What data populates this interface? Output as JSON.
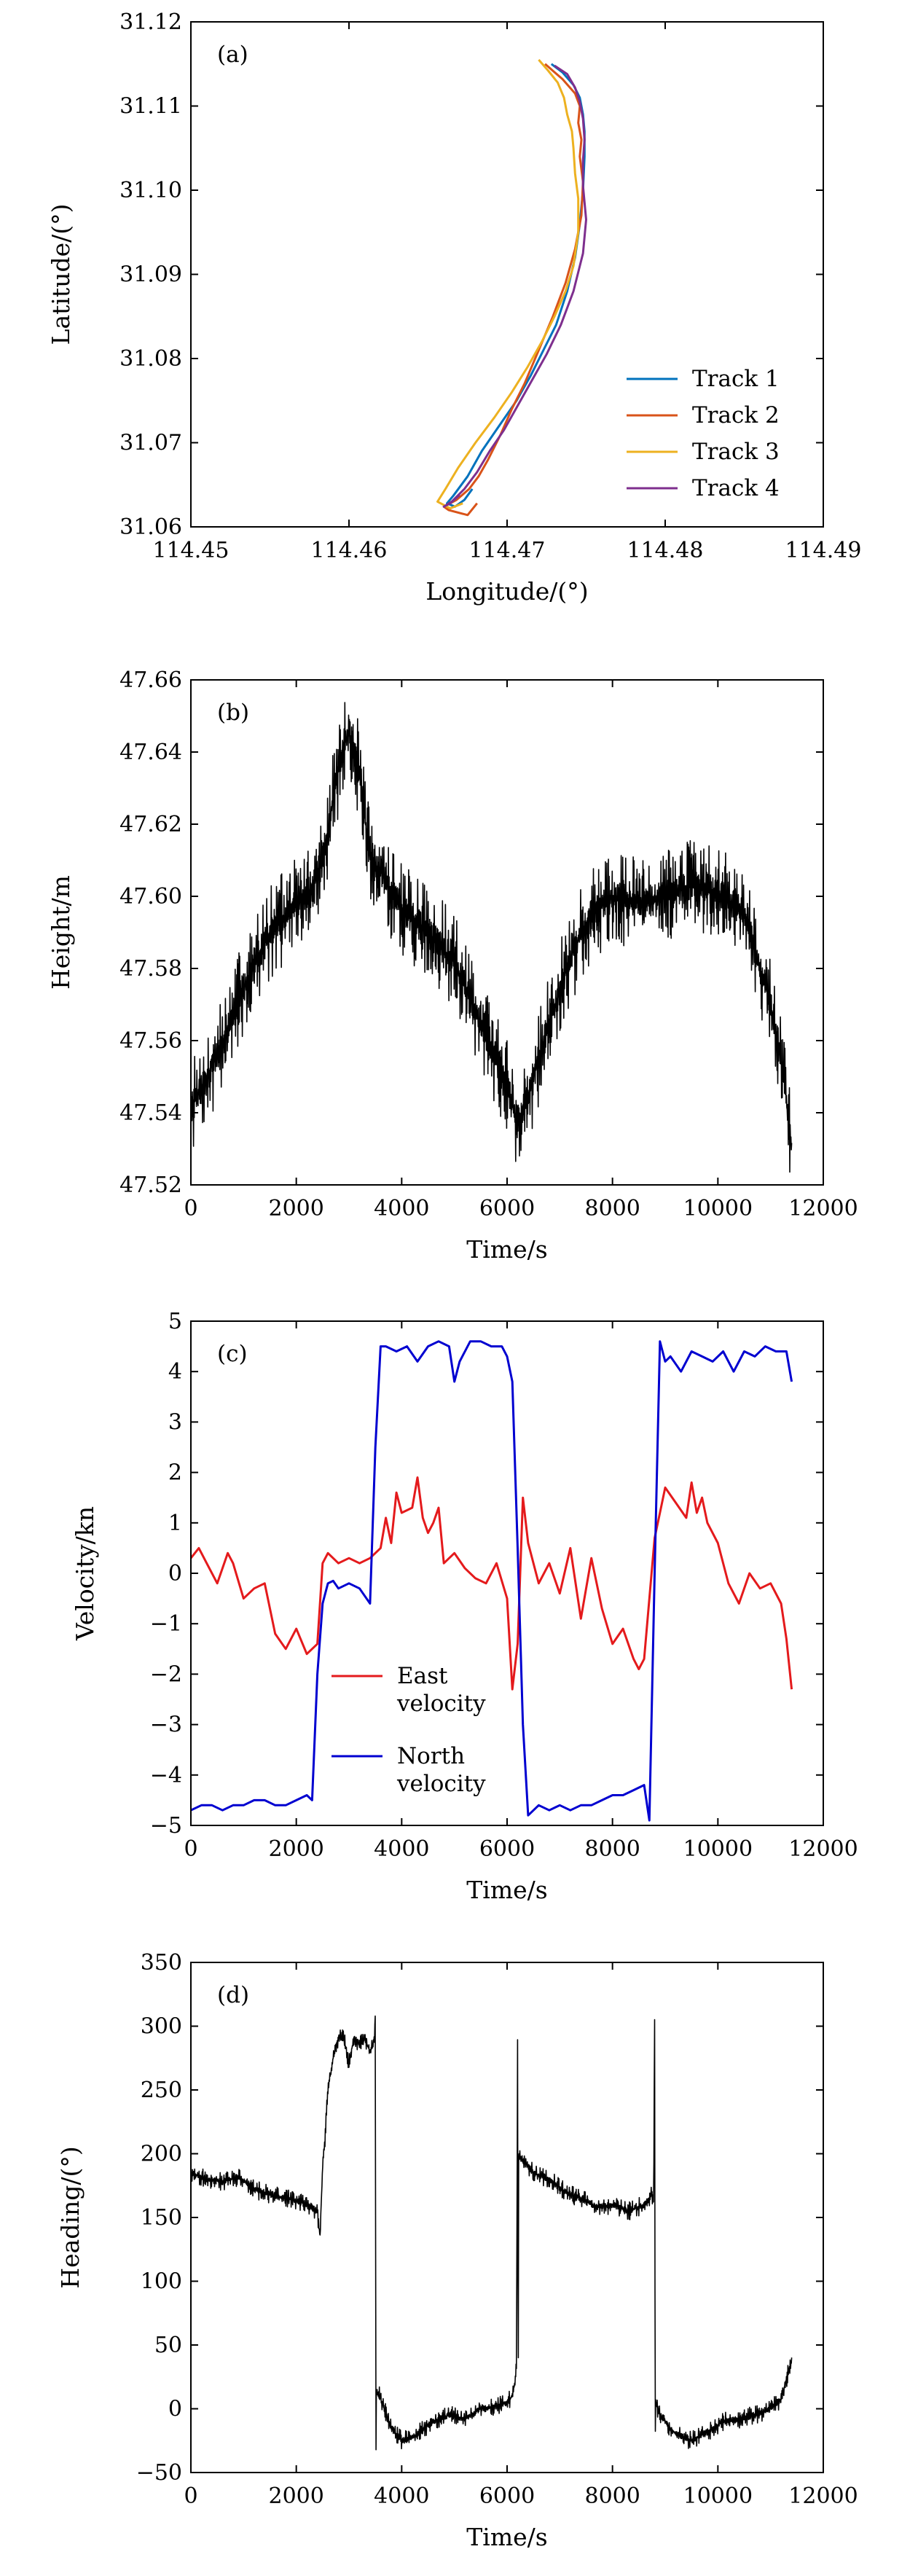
{
  "figure": {
    "panel_count": 4
  },
  "chart_data": [
    {
      "type": "line",
      "panel": "(a)",
      "xlabel": "Longitude/(°)",
      "ylabel": "Latitude/(°)",
      "xlim": [
        114.45,
        114.49
      ],
      "ylim": [
        31.06,
        31.12
      ],
      "xticks": [
        "114.45",
        "114.46",
        "114.47",
        "114.48",
        "114.49"
      ],
      "yticks": [
        "31.06",
        "31.07",
        "31.08",
        "31.09",
        "31.10",
        "31.11",
        "31.12"
      ],
      "xtick_values": [
        114.45,
        114.46,
        114.47,
        114.48,
        114.49
      ],
      "ytick_values": [
        31.06,
        31.07,
        31.08,
        31.09,
        31.1,
        31.11,
        31.12
      ],
      "legend_position": "bottom-right",
      "series": [
        {
          "name": "Track 1",
          "color": "#0072BD",
          "x": [
            114.4728,
            114.4735,
            114.4742,
            114.4746,
            114.4748,
            114.4749,
            114.4749,
            114.4748,
            114.4746,
            114.4743,
            114.4738,
            114.4731,
            114.4723,
            114.4715,
            114.4706,
            114.4695,
            114.4684,
            114.4675,
            114.4666,
            114.4662,
            114.4667,
            114.4673,
            114.4678
          ],
          "y": [
            31.115,
            31.114,
            31.1125,
            31.111,
            31.109,
            31.107,
            31.104,
            31.1,
            31.096,
            31.092,
            31.088,
            31.084,
            31.081,
            31.078,
            31.075,
            31.072,
            31.069,
            31.066,
            31.0637,
            31.0628,
            31.0624,
            31.0632,
            31.0645
          ]
        },
        {
          "name": "Track 2",
          "color": "#D95319",
          "x": [
            114.4724,
            114.4735,
            114.4743,
            114.4746,
            114.4745,
            114.4747,
            114.4746,
            114.4748,
            114.4747,
            114.4743,
            114.4737,
            114.4729,
            114.472,
            114.4711,
            114.4703,
            114.4696,
            114.4688,
            114.4682,
            114.4676,
            114.4668,
            114.466,
            114.4663,
            114.4675,
            114.4681
          ],
          "y": [
            31.115,
            31.1132,
            31.1115,
            31.11,
            31.108,
            31.106,
            31.104,
            31.101,
            31.097,
            31.093,
            31.089,
            31.085,
            31.081,
            31.077,
            31.074,
            31.071,
            31.068,
            31.066,
            31.0645,
            31.0632,
            31.0624,
            31.062,
            31.0614,
            31.0628
          ]
        },
        {
          "name": "Track 3",
          "color": "#EDB120",
          "x": [
            114.472,
            114.4726,
            114.4732,
            114.4736,
            114.4738,
            114.4741,
            114.4742,
            114.4743,
            114.4745,
            114.4745,
            114.4742,
            114.4737,
            114.473,
            114.4722,
            114.4713,
            114.4703,
            114.4692,
            114.468,
            114.4669,
            114.4661,
            114.4656,
            114.4664,
            114.4672
          ],
          "y": [
            31.1155,
            31.1142,
            31.1128,
            31.111,
            31.109,
            31.107,
            31.105,
            31.102,
            31.099,
            31.095,
            31.091,
            31.088,
            31.085,
            31.082,
            31.079,
            31.076,
            31.073,
            31.07,
            31.067,
            31.0645,
            31.063,
            31.0622,
            31.0628
          ]
        },
        {
          "name": "Track 4",
          "color": "#7E2F8E",
          "x": [
            114.473,
            114.4738,
            114.4743,
            114.4746,
            114.4748,
            114.4749,
            114.4748,
            114.4748,
            114.475,
            114.4748,
            114.4742,
            114.4734,
            114.4725,
            114.4716,
            114.4707,
            114.4698,
            114.4689,
            114.4681,
            114.4673,
            114.4665,
            114.466,
            114.4664,
            114.467
          ],
          "y": [
            31.1148,
            31.1138,
            31.1122,
            31.1105,
            31.1085,
            31.106,
            31.1035,
            31.1005,
            31.0965,
            31.0925,
            31.088,
            31.084,
            31.0805,
            31.0775,
            31.0745,
            31.0715,
            31.069,
            31.0665,
            31.0645,
            31.063,
            31.0624,
            31.0628,
            31.0638
          ]
        }
      ]
    },
    {
      "type": "line",
      "panel": "(b)",
      "xlabel": "Time/s",
      "ylabel": "Height/m",
      "xlim": [
        0,
        12000
      ],
      "ylim": [
        47.52,
        47.66
      ],
      "xticks": [
        "0",
        "2000",
        "4000",
        "6000",
        "8000",
        "10000",
        "12000"
      ],
      "yticks": [
        "47.52",
        "47.54",
        "47.56",
        "47.58",
        "47.60",
        "47.62",
        "47.64",
        "47.66"
      ],
      "xtick_values": [
        0,
        2000,
        4000,
        6000,
        8000,
        10000,
        12000
      ],
      "ytick_values": [
        47.52,
        47.54,
        47.56,
        47.58,
        47.6,
        47.62,
        47.64,
        47.66
      ],
      "noise_amplitude": 0.011,
      "series": [
        {
          "name": "",
          "color": "#000000",
          "x": [
            0,
            500,
            1000,
            1500,
            2000,
            2300,
            2600,
            2800,
            3000,
            3200,
            3400,
            3600,
            4000,
            4500,
            5000,
            5500,
            6000,
            6200,
            6400,
            6800,
            7200,
            7600,
            8000,
            8500,
            9000,
            9500,
            10000,
            10500,
            10800,
            11000,
            11200,
            11400
          ],
          "y": [
            47.541,
            47.556,
            47.575,
            47.59,
            47.598,
            47.601,
            47.618,
            47.635,
            47.646,
            47.634,
            47.61,
            47.607,
            47.596,
            47.59,
            47.582,
            47.565,
            47.548,
            47.537,
            47.545,
            47.565,
            47.583,
            47.595,
            47.6,
            47.598,
            47.6,
            47.603,
            47.601,
            47.595,
            47.58,
            47.57,
            47.555,
            47.53
          ]
        }
      ]
    },
    {
      "type": "line",
      "panel": "(c)",
      "xlabel": "Time/s",
      "ylabel": "Velocity/kn",
      "xlim": [
        0,
        12000
      ],
      "ylim": [
        -5,
        5
      ],
      "xticks": [
        "0",
        "2000",
        "4000",
        "6000",
        "8000",
        "10000",
        "12000"
      ],
      "yticks": [
        "−5",
        "−4",
        "−3",
        "−2",
        "−1",
        "0",
        "1",
        "2",
        "3",
        "4",
        "5"
      ],
      "xtick_values": [
        0,
        2000,
        4000,
        6000,
        8000,
        10000,
        12000
      ],
      "ytick_values": [
        -5,
        -4,
        -3,
        -2,
        -1,
        0,
        1,
        2,
        3,
        4,
        5
      ],
      "legend_position": "bottom-left",
      "series": [
        {
          "name": "East\nvelocity",
          "color": "#E41A1C",
          "x": [
            0,
            150,
            300,
            500,
            700,
            800,
            1000,
            1200,
            1400,
            1600,
            1800,
            2000,
            2200,
            2400,
            2500,
            2600,
            2800,
            3000,
            3200,
            3400,
            3600,
            3700,
            3800,
            3900,
            4000,
            4200,
            4300,
            4400,
            4500,
            4600,
            4700,
            4800,
            5000,
            5200,
            5400,
            5600,
            5800,
            6000,
            6100,
            6200,
            6300,
            6400,
            6600,
            6800,
            7000,
            7200,
            7400,
            7600,
            7800,
            8000,
            8200,
            8400,
            8500,
            8600,
            8800,
            8900,
            9000,
            9200,
            9400,
            9500,
            9600,
            9700,
            9800,
            10000,
            10200,
            10400,
            10600,
            10800,
            11000,
            11200,
            11300,
            11400
          ],
          "y": [
            0.3,
            0.5,
            0.2,
            -0.2,
            0.4,
            0.2,
            -0.5,
            -0.3,
            -0.2,
            -1.2,
            -1.5,
            -1.1,
            -1.6,
            -1.4,
            0.2,
            0.4,
            0.2,
            0.3,
            0.2,
            0.3,
            0.5,
            1.1,
            0.6,
            1.6,
            1.2,
            1.3,
            1.9,
            1.1,
            0.8,
            1.0,
            1.3,
            0.2,
            0.4,
            0.1,
            -0.1,
            -0.2,
            0.2,
            -0.5,
            -2.3,
            -1.4,
            1.5,
            0.6,
            -0.2,
            0.2,
            -0.4,
            0.5,
            -0.9,
            0.3,
            -0.7,
            -1.4,
            -1.1,
            -1.7,
            -1.9,
            -1.7,
            0.7,
            1.2,
            1.7,
            1.4,
            1.1,
            1.8,
            1.2,
            1.5,
            1.0,
            0.6,
            -0.2,
            -0.6,
            0.0,
            -0.3,
            -0.2,
            -0.6,
            -1.3,
            -2.3
          ]
        },
        {
          "name": "North\nvelocity",
          "color": "#0000D0",
          "x": [
            0,
            200,
            400,
            600,
            800,
            1000,
            1200,
            1400,
            1600,
            1800,
            2000,
            2200,
            2300,
            2400,
            2500,
            2600,
            2700,
            2800,
            3000,
            3200,
            3400,
            3500,
            3600,
            3700,
            3900,
            4100,
            4300,
            4500,
            4700,
            4900,
            5000,
            5100,
            5300,
            5500,
            5700,
            5900,
            6000,
            6100,
            6200,
            6300,
            6400,
            6600,
            6800,
            7000,
            7200,
            7400,
            7600,
            7800,
            8000,
            8200,
            8400,
            8600,
            8700,
            8800,
            8900,
            9000,
            9100,
            9300,
            9500,
            9700,
            9900,
            10100,
            10300,
            10500,
            10700,
            10900,
            11100,
            11300,
            11400
          ],
          "y": [
            -4.7,
            -4.6,
            -4.6,
            -4.7,
            -4.6,
            -4.6,
            -4.5,
            -4.5,
            -4.6,
            -4.6,
            -4.5,
            -4.4,
            -4.5,
            -2.0,
            -0.6,
            -0.2,
            -0.15,
            -0.3,
            -0.2,
            -0.3,
            -0.6,
            2.5,
            4.5,
            4.5,
            4.4,
            4.5,
            4.2,
            4.5,
            4.6,
            4.5,
            3.8,
            4.2,
            4.6,
            4.6,
            4.5,
            4.5,
            4.3,
            3.8,
            0.5,
            -3.0,
            -4.8,
            -4.6,
            -4.7,
            -4.6,
            -4.7,
            -4.6,
            -4.6,
            -4.5,
            -4.4,
            -4.4,
            -4.3,
            -4.2,
            -4.9,
            0.0,
            4.6,
            4.2,
            4.3,
            4.0,
            4.4,
            4.3,
            4.2,
            4.4,
            4.0,
            4.4,
            4.3,
            4.5,
            4.4,
            4.4,
            3.8
          ]
        }
      ]
    },
    {
      "type": "line",
      "panel": "(d)",
      "xlabel": "Time/s",
      "ylabel": "Heading/(°)",
      "xlim": [
        0,
        12000
      ],
      "ylim": [
        -50,
        350
      ],
      "xticks": [
        "0",
        "2000",
        "4000",
        "6000",
        "8000",
        "10000",
        "12000"
      ],
      "yticks": [
        "−50",
        "0",
        "50",
        "100",
        "150",
        "200",
        "250",
        "300",
        "350"
      ],
      "xtick_values": [
        0,
        2000,
        4000,
        6000,
        8000,
        10000,
        12000
      ],
      "ytick_values": [
        -50,
        0,
        50,
        100,
        150,
        200,
        250,
        300,
        350
      ],
      "noise_amplitude": 6,
      "series": [
        {
          "name": "",
          "color": "#000000",
          "x": [
            0,
            300,
            600,
            900,
            1200,
            1500,
            1800,
            2100,
            2300,
            2400,
            2450,
            2500,
            2550,
            2600,
            2700,
            2800,
            2900,
            3000,
            3100,
            3200,
            3300,
            3400,
            3450,
            3480,
            3500,
            3510,
            3520,
            3600,
            3800,
            4000,
            4300,
            4600,
            4900,
            5200,
            5500,
            5800,
            6000,
            6100,
            6150,
            6180,
            6200,
            6210,
            6220,
            6300,
            6500,
            6800,
            7100,
            7400,
            7700,
            8000,
            8300,
            8600,
            8700,
            8750,
            8780,
            8800,
            8810,
            8820,
            8900,
            9200,
            9500,
            9800,
            10100,
            10400,
            10700,
            11000,
            11200,
            11400
          ],
          "y": [
            185,
            180,
            178,
            182,
            172,
            168,
            165,
            162,
            158,
            155,
            135,
            190,
            215,
            250,
            275,
            292,
            290,
            272,
            292,
            285,
            290,
            280,
            285,
            290,
            310,
            -40,
            15,
            8,
            -15,
            -25,
            -20,
            -10,
            -5,
            -8,
            0,
            2,
            5,
            10,
            20,
            40,
            305,
            -30,
            200,
            195,
            185,
            180,
            170,
            165,
            158,
            160,
            155,
            160,
            165,
            170,
            160,
            310,
            -30,
            5,
            -5,
            -20,
            -25,
            -18,
            -10,
            -8,
            -5,
            0,
            8,
            38
          ]
        }
      ]
    }
  ]
}
